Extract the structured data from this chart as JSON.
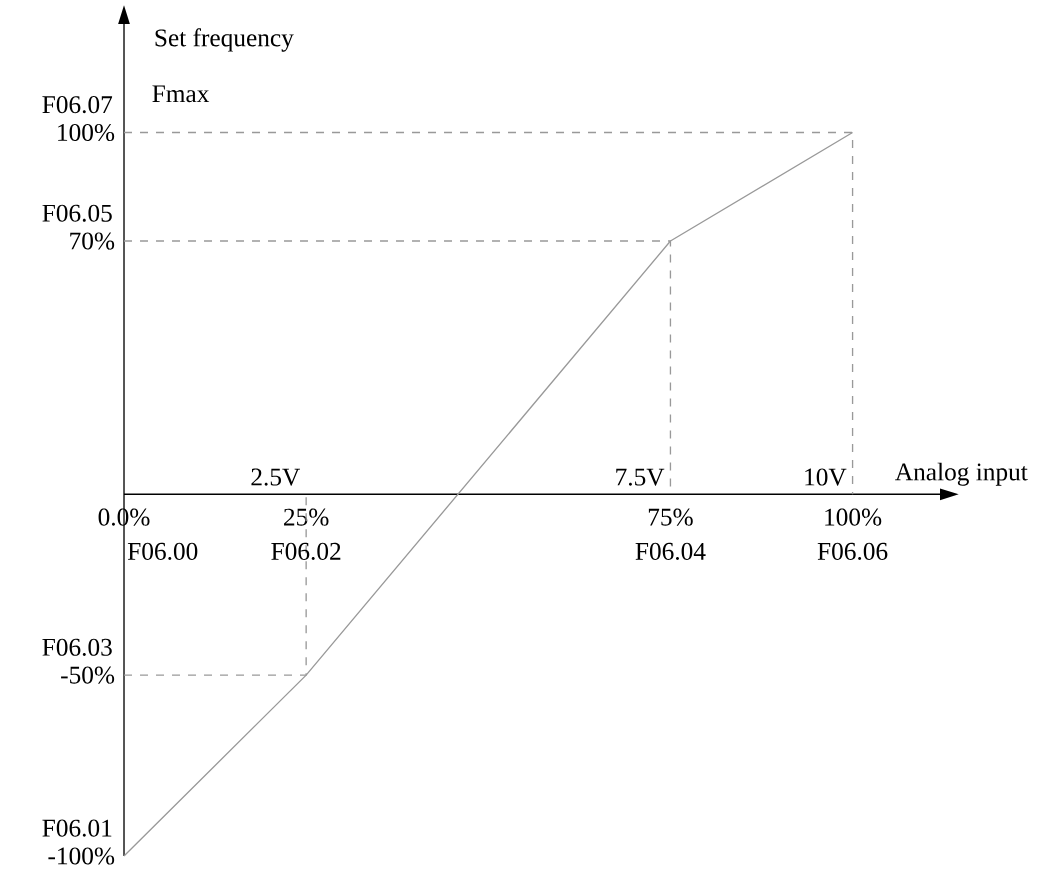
{
  "chart_data": {
    "type": "line",
    "xlabel": "Analog input",
    "ylabel": "Set frequency",
    "xlim": [
      0,
      112
    ],
    "ylim": [
      -100,
      130
    ],
    "xticks": [
      {
        "value": 0,
        "label": "0.0%"
      },
      {
        "value": 25,
        "label": "25%"
      },
      {
        "value": 75,
        "label": "75%"
      },
      {
        "value": 100,
        "label": "100%"
      }
    ],
    "yticks": [
      {
        "value": -100,
        "label": "-100%"
      },
      {
        "value": -50,
        "label": "-50%"
      },
      {
        "value": 70,
        "label": "70%"
      },
      {
        "value": 100,
        "label": "100%"
      }
    ],
    "series": [
      {
        "color": "#999999",
        "x": [
          0,
          25,
          75,
          100
        ],
        "values": [
          -100,
          -50,
          70,
          100
        ]
      },
      {
        "color": "#999999",
        "line_style": "dashed",
        "x": [
          0,
          25,
          25,
          null,
          0,
          75,
          75,
          null,
          0,
          100,
          100
        ],
        "values": [
          -50,
          -50,
          0,
          null,
          70,
          70,
          0,
          null,
          100,
          100,
          0
        ]
      }
    ],
    "annotations": [
      "Fmax",
      "F06.00",
      {
        "text": "2.5V",
        "x": 25,
        "y": 0
      },
      {
        "text": "7.5V",
        "x": 75,
        "y": 0
      },
      {
        "text": "10V",
        "x": 100,
        "y": 0
      },
      {
        "text": "F06.02",
        "x": 25,
        "y": 0
      },
      {
        "text": "F06.04",
        "x": 75,
        "y": 0
      },
      {
        "text": "F06.06",
        "x": 100,
        "y": 0
      },
      {
        "text": "F06.01",
        "x": 0,
        "y": -100
      },
      {
        "text": "F06.03",
        "x": 0,
        "y": -50
      },
      {
        "text": "F06.05",
        "x": 0,
        "y": 70
      },
      {
        "text": "F06.07",
        "x": 0,
        "y": 100
      }
    ]
  }
}
